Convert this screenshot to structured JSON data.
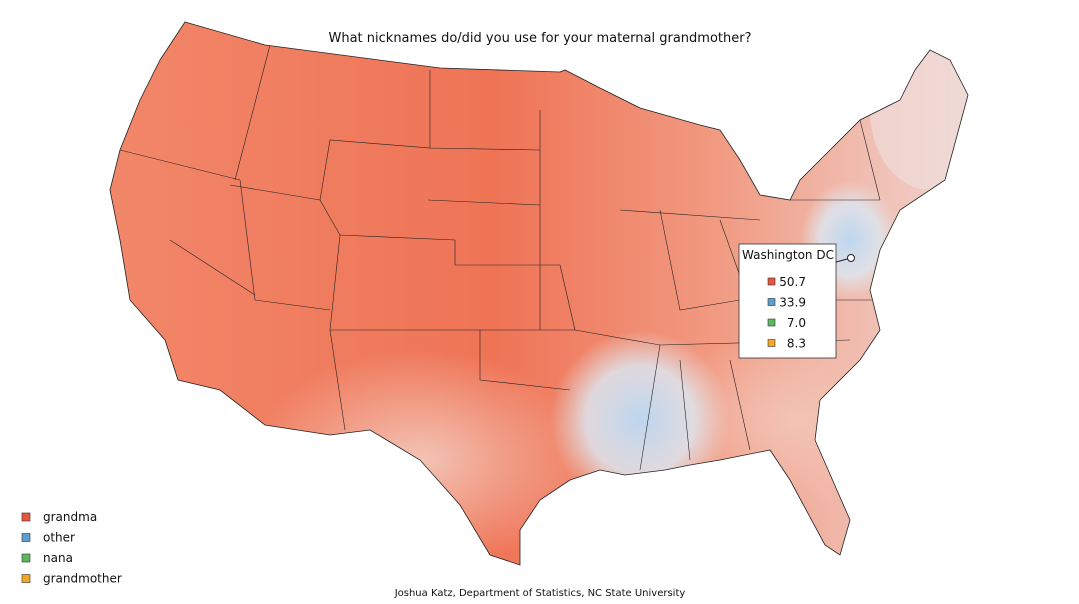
{
  "title": "What nicknames do/did you use for your maternal grandmother?",
  "legend": [
    {
      "label": "grandma",
      "color": "#e8553f"
    },
    {
      "label": "other",
      "color": "#5b9fd1"
    },
    {
      "label": "nana",
      "color": "#5cb85c"
    },
    {
      "label": "grandmother",
      "color": "#f5a623"
    }
  ],
  "tooltip": {
    "location": "Washington DC",
    "values": [
      "50.7",
      "33.9",
      "7.0",
      "8.3"
    ]
  },
  "credit": "Joshua Katz, Department of Statistics, NC State University"
}
